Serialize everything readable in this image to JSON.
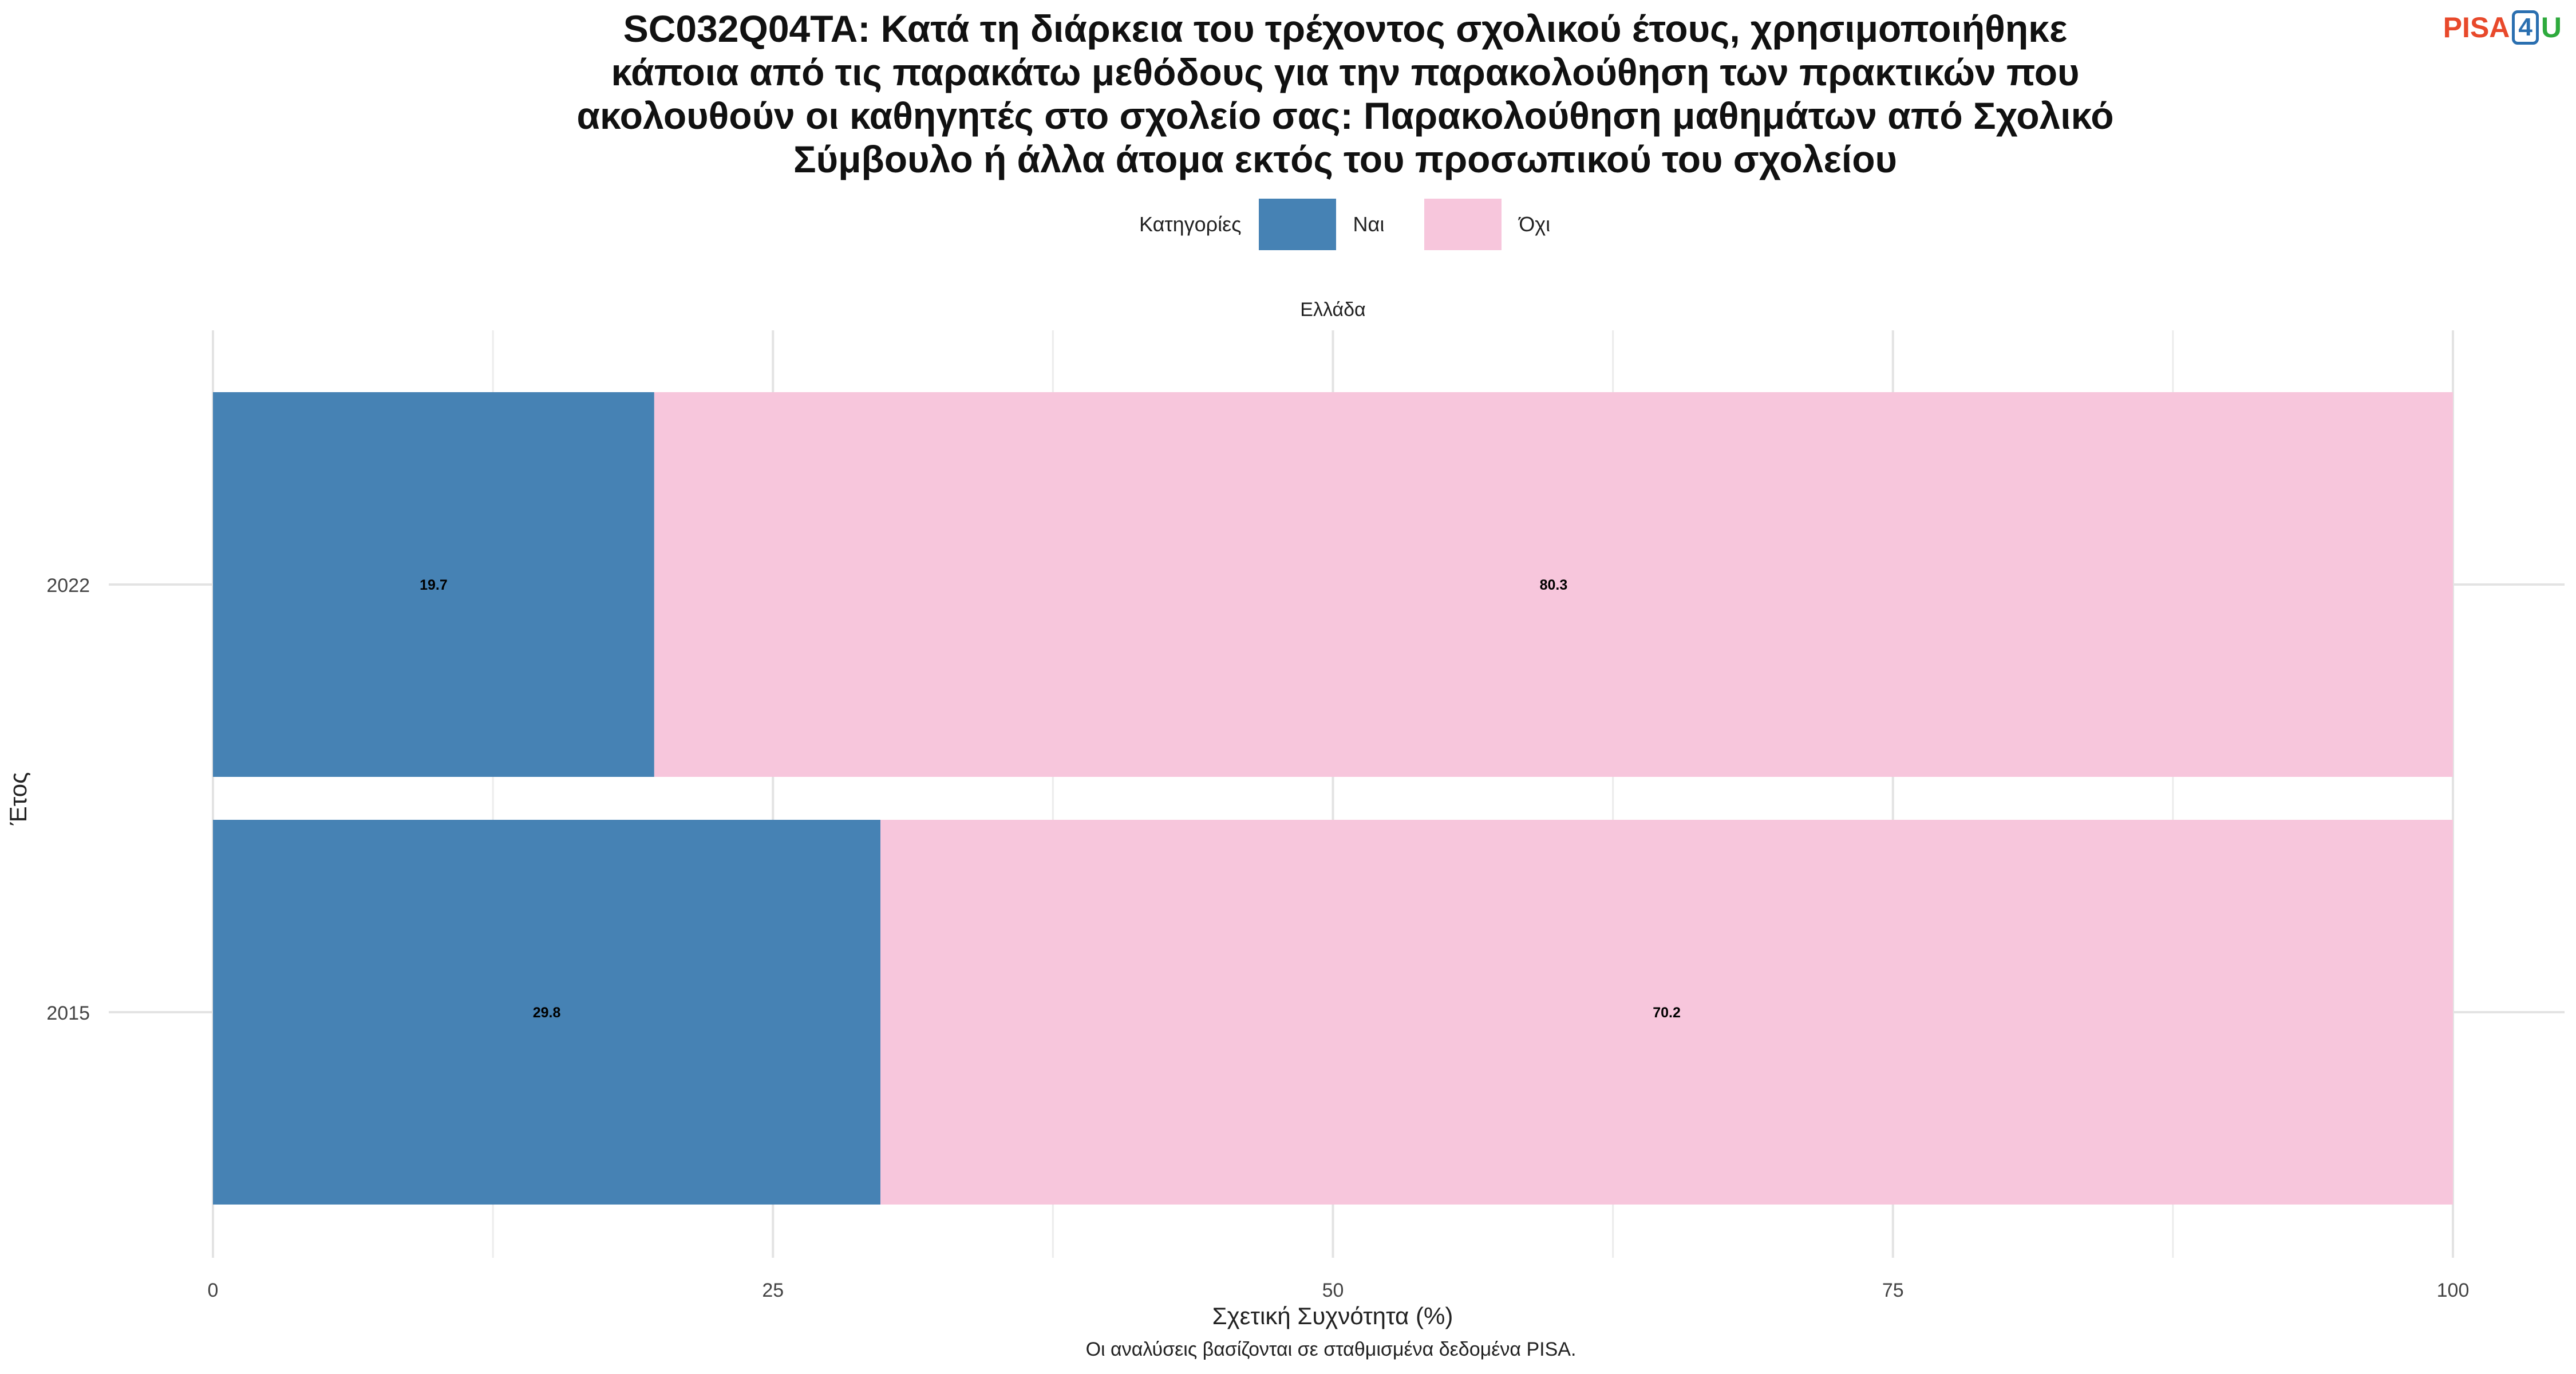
{
  "chart_data": {
    "type": "bar",
    "orientation": "horizontal",
    "stacked": true,
    "title_lines": [
      "SC032Q04TA: Κατά τη διάρκεια του τρέχοντος σχολικού έτους, χρησιμοποιήθηκε",
      "κάποια από τις παρακάτω μεθόδους για την παρακολούθηση των πρακτικών που",
      "ακολουθούν οι καθηγητές στο σχολείο σας: Παρακολούθηση μαθημάτων από Σχολικό",
      "Σύμβουλο ή άλλα άτομα εκτός του προσωπικού του σχολείου"
    ],
    "facet_label": "Ελλάδα",
    "legend_title": "Κατηγορίες",
    "legend_position": "top",
    "categories": [
      "2022",
      "2015"
    ],
    "series": [
      {
        "name": "Ναι",
        "color": "#4682b4",
        "values": [
          19.7,
          29.8
        ]
      },
      {
        "name": "Όχι",
        "color": "#f7c6dc",
        "values": [
          80.3,
          70.2
        ]
      }
    ],
    "xlabel": "Σχετική Συχνότητα (%)",
    "ylabel": "Έτος",
    "xlim": [
      0,
      100
    ],
    "xticks": [
      "0",
      "25",
      "50",
      "75",
      "100"
    ],
    "grid": true,
    "caption": "Οι αναλύσεις βασίζονται σε σταθμισμένα δεδομένα PISA."
  },
  "logo": {
    "pisa": "PISA",
    "four": "4",
    "u": "U"
  }
}
